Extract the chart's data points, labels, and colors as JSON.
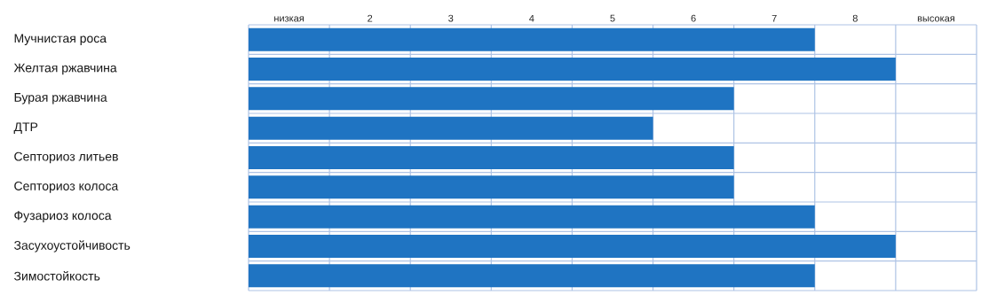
{
  "chart_data": {
    "type": "bar",
    "orientation": "horizontal",
    "categories": [
      "Мучнистая роса",
      "Желтая ржавчина",
      "Бурая ржавчина",
      "ДТР",
      "Септориоз литьев",
      "Септориоз колоса",
      "Фузариоз колоса",
      "Засухоустойчивость",
      "Зимостойкость"
    ],
    "values": [
      7,
      8,
      6,
      5,
      6,
      6,
      7,
      8,
      7
    ],
    "color": "#1f74c2",
    "xlim": [
      0,
      9
    ],
    "xticks": [
      {
        "value": 0.5,
        "label": "низкая"
      },
      {
        "value": 1.5,
        "label": "2"
      },
      {
        "value": 2.5,
        "label": "3"
      },
      {
        "value": 3.5,
        "label": "4"
      },
      {
        "value": 4.5,
        "label": "5"
      },
      {
        "value": 5.5,
        "label": "6"
      },
      {
        "value": 6.5,
        "label": "7"
      },
      {
        "value": 7.5,
        "label": "8"
      },
      {
        "value": 8.5,
        "label": "высокая"
      }
    ],
    "grid": true
  }
}
